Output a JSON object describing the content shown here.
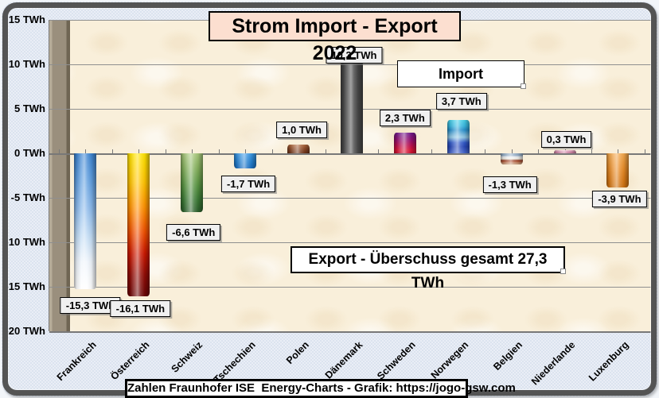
{
  "title": "Strom Import - Export 2022",
  "annotations": {
    "import_label": "Import",
    "export_label": "Export - Überschuss gesamt 27,3 TWh"
  },
  "footer": "Zahlen Fraunhofer ISE  Energy-Charts - Grafik: https://jogo-gsw.com",
  "colors": {
    "title_bg": "#fcdfd0",
    "plot_bg": "#f9efda",
    "wall": "#9a8f7d",
    "frame": "#545454",
    "gridline": "#8f8f8f",
    "value_label_bg": "#f0f0f0"
  },
  "chart_data": {
    "type": "bar",
    "title": "Strom Import - Export 2022",
    "unit": "TWh",
    "categories": [
      "Frankreich",
      "Österreich",
      "Schweiz",
      "Tschechien",
      "Polen",
      "Dänemark",
      "Schweden",
      "Norwegen",
      "Belgien",
      "Niederlande",
      "Luxenburg"
    ],
    "values": [
      -15.3,
      -16.1,
      -6.6,
      -1.7,
      1.0,
      10.3,
      2.3,
      3.7,
      -1.3,
      0.3,
      -3.9
    ],
    "value_labels": [
      "-15,3 TWh",
      "-16,1 TWh",
      "-6,6 TWh",
      "-1,7 TWh",
      "1,0 TWh",
      "10,3 TWh",
      "2,3 TWh",
      "3,7 TWh",
      "-1,3 TWh",
      "0,3 TWh",
      "-3,9 TWh"
    ],
    "y_axis": {
      "tick_labels": [
        "15 TWh",
        "10 TWh",
        "5 TWh",
        "0 TWh",
        "-5 TWh",
        "-10 TWh",
        "-15 TWh",
        "-20 TWh"
      ],
      "tick_values": [
        15,
        10,
        5,
        0,
        -5,
        -10,
        -15,
        -20
      ],
      "ylim": [
        -20,
        15
      ],
      "grid": true
    },
    "legend_position": "none",
    "annotations": [
      "Import",
      "Export - Überschuss gesamt 27,3 TWh"
    ],
    "bar_gradients": [
      [
        "#3d84d0 0%",
        "#5c9cde 18%",
        "#8ab8ea 40%",
        "#c2dcf4 62%",
        "#eef4fb 80%",
        "#ffffff 100%"
      ],
      [
        "#ffe400 0%",
        "#ffc400 20%",
        "#ff9000 38%",
        "#f05000 55%",
        "#cc1800 70%",
        "#920c06 85%",
        "#6a0606 100%"
      ],
      [
        "#a8c87c 0%",
        "#84b05c 25%",
        "#589442 55%",
        "#3a7834 80%",
        "#2c602c 100%"
      ],
      [
        "#3f9ae4 0%",
        "#2380d0 60%",
        "#1a6ec0 100%"
      ],
      [
        "#b06a40 0%",
        "#94502c 40%",
        "#7c3e20 75%",
        "#6e3419 100%"
      ],
      [
        "#454545 0%",
        "#484848 100%"
      ],
      [
        "#6f1a8c 0%",
        "#941070 35%",
        "#c00e4a 65%",
        "#d81434 85%",
        "#cc1030 100%"
      ],
      [
        "#48d0e8 0%",
        "#38b8e0 18%",
        "#2890cc 30%",
        "#78b8dc 45%",
        "#90c8e4 52%",
        "#3058c8 68%",
        "#2848b8 80%",
        "#4868cc 100%"
      ],
      [
        "#8ca6c0 0%",
        "#9db4ca 22%",
        "#e6e9ed 30%",
        "#f2efe8 48%",
        "#d8c8b8 55%",
        "#a04830 62%",
        "#b05838 75%",
        "#c89878 88%",
        "#b88868 100%"
      ],
      [
        "#e8b4c8 0%",
        "#d088a8 60%",
        "#c87898 100%"
      ],
      [
        "#f2a84e 0%",
        "#e88c28 45%",
        "#d87814 80%",
        "#cc7010 100%"
      ]
    ]
  }
}
